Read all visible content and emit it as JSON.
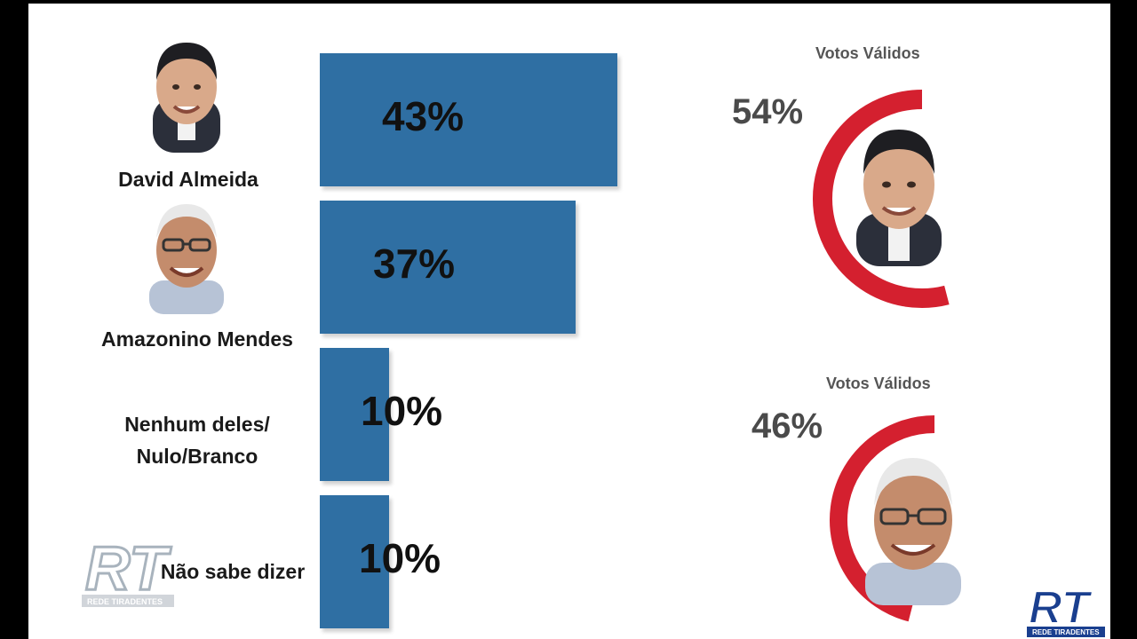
{
  "chart_data": [
    {
      "type": "bar",
      "orientation": "horizontal",
      "categories": [
        "David Almeida",
        "Amazonino Mendes",
        "Nenhum deles/\nNulo/Branco",
        "Não sabe dizer"
      ],
      "values": [
        43,
        37,
        10,
        10
      ],
      "value_labels": [
        "43%",
        "37%",
        "10%",
        "10%"
      ],
      "unit": "%",
      "xlim": [
        0,
        43
      ],
      "color": "#2f6fa3"
    },
    {
      "type": "pie",
      "subtype": "gauge",
      "title": "Votos Válidos",
      "series": [
        {
          "name": "David Almeida",
          "value": 54,
          "label": "54%",
          "color": "#d4202f"
        }
      ]
    },
    {
      "type": "pie",
      "subtype": "gauge",
      "title": "Votos Válidos",
      "series": [
        {
          "name": "Amazonino Mendes",
          "value": 46,
          "label": "46%",
          "color": "#d4202f"
        }
      ]
    }
  ],
  "labels": {
    "cand1": "David Almeida",
    "cand2": "Amazonino Mendes",
    "none1": "Nenhum deles/",
    "none2": "Nulo/Branco",
    "unknown": "Não sabe dizer"
  },
  "logo": {
    "text": "RT",
    "subtitle": "REDE TIRADENTES"
  },
  "icons": [
    "candidate-photo-david-icon",
    "candidate-photo-amazonino-icon",
    "rt-logo-icon"
  ]
}
